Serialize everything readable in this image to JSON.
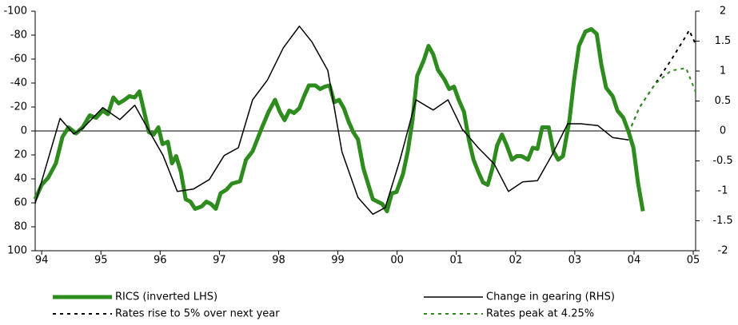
{
  "chart_data": {
    "type": "line",
    "xlim": [
      1993.89,
      2005.04
    ],
    "xticks": [
      {
        "value": 1994,
        "label": "94"
      },
      {
        "value": 1995,
        "label": "95"
      },
      {
        "value": 1996,
        "label": "96"
      },
      {
        "value": 1997,
        "label": "97"
      },
      {
        "value": 1998,
        "label": "98"
      },
      {
        "value": 1999,
        "label": "99"
      },
      {
        "value": 2000,
        "label": "00"
      },
      {
        "value": 2001,
        "label": "01"
      },
      {
        "value": 2002,
        "label": "02"
      },
      {
        "value": 2003,
        "label": "03"
      },
      {
        "value": 2004,
        "label": "04"
      },
      {
        "value": 2005,
        "label": "05"
      }
    ],
    "ylim": [
      -100,
      100
    ],
    "y_inverted": true,
    "yticks": [
      -100,
      -80,
      -60,
      -40,
      -20,
      0,
      20,
      40,
      60,
      80,
      100
    ],
    "y2lim": [
      -2,
      2
    ],
    "y2ticks": [
      2,
      1.5,
      1,
      0.5,
      0,
      -0.5,
      -1,
      -1.5,
      -2
    ],
    "series": [
      {
        "name": "RICS (inverted LHS)",
        "color": "#2e8b1e",
        "axis": "y",
        "style": "thick",
        "x": [
          1993.89,
          1994.0,
          1994.11,
          1994.24,
          1994.35,
          1994.45,
          1994.58,
          1994.69,
          1994.81,
          1994.92,
          1995.03,
          1995.12,
          1995.21,
          1995.3,
          1995.4,
          1995.48,
          1995.57,
          1995.65,
          1995.73,
          1995.81,
          1995.89,
          1995.97,
          1996.04,
          1996.13,
          1996.2,
          1996.27,
          1996.35,
          1996.43,
          1996.51,
          1996.59,
          1996.7,
          1996.78,
          1996.86,
          1996.94,
          1997.02,
          1997.12,
          1997.21,
          1997.35,
          1997.45,
          1997.56,
          1997.64,
          1997.72,
          1997.83,
          1997.94,
          1998.02,
          1998.1,
          1998.18,
          1998.26,
          1998.35,
          1998.43,
          1998.51,
          1998.62,
          1998.7,
          1998.78,
          1998.86,
          1998.94,
          1999.02,
          1999.1,
          1999.18,
          1999.26,
          1999.34,
          1999.43,
          1999.51,
          1999.59,
          1999.67,
          1999.75,
          1999.83,
          1999.91,
          1999.99,
          2000.1,
          2000.18,
          2000.26,
          2000.34,
          2000.45,
          2000.53,
          2000.61,
          2000.69,
          2000.8,
          2000.88,
          2000.96,
          2001.04,
          2001.13,
          2001.21,
          2001.29,
          2001.37,
          2001.45,
          2001.53,
          2001.61,
          2001.69,
          2001.77,
          2001.85,
          2001.94,
          2002.02,
          2002.1,
          2002.21,
          2002.29,
          2002.37,
          2002.45,
          2002.56,
          2002.64,
          2002.72,
          2002.8,
          2002.91,
          2002.99,
          2003.07,
          2003.18,
          2003.28,
          2003.37,
          2003.45,
          2003.53,
          2003.64,
          2003.72,
          2003.82,
          2003.91,
          2003.99,
          2004.07,
          2004.15
        ],
        "values": [
          57,
          45,
          39,
          27,
          5,
          -3,
          2,
          -3,
          -13,
          -11,
          -17,
          -14,
          -28,
          -23,
          -26,
          -29,
          -28,
          -33,
          -16,
          1,
          3,
          -3,
          11,
          9,
          27,
          21,
          34,
          57,
          59,
          65,
          63,
          59,
          61,
          65,
          52,
          49,
          44,
          42,
          24,
          17,
          7,
          -3,
          -16,
          -26,
          -16,
          -9,
          -17,
          -15,
          -19,
          -29,
          -38,
          -38,
          -35,
          -37,
          -38,
          -24,
          -26,
          -19,
          -8,
          1,
          7,
          31,
          44,
          57,
          59,
          61,
          67,
          52,
          51,
          36,
          17,
          -9,
          -46,
          -59,
          -71,
          -64,
          -51,
          -43,
          -35,
          -37,
          -26,
          -16,
          7,
          24,
          34,
          43,
          45,
          31,
          12,
          3,
          12,
          24,
          21,
          21,
          24,
          14,
          15,
          -3,
          -3,
          17,
          24,
          21,
          -9,
          -43,
          -71,
          -83,
          -85,
          -81,
          -55,
          -36,
          -29,
          -17,
          -11,
          1,
          14,
          44,
          67
        ]
      },
      {
        "name": "Change in gearing (RHS)",
        "color": "#000000",
        "axis": "y2",
        "style": "solid",
        "x": [
          1993.89,
          1994.31,
          1994.54,
          1994.7,
          1995.03,
          1995.32,
          1995.57,
          1995.86,
          1996.05,
          1996.29,
          1996.56,
          1996.83,
          1997.08,
          1997.32,
          1997.56,
          1997.81,
          1998.08,
          1998.35,
          1998.56,
          1998.83,
          1999.07,
          1999.34,
          1999.59,
          1999.8,
          2000.05,
          2000.32,
          2000.61,
          2000.86,
          2001.1,
          2001.37,
          2001.64,
          2001.88,
          2002.12,
          2002.37,
          2002.61,
          2002.88,
          2003.1,
          2003.39,
          2003.64,
          2003.91
        ],
        "values": [
          -1.21,
          0.21,
          -0.05,
          0.05,
          0.39,
          0.19,
          0.43,
          -0.08,
          -0.41,
          -1.01,
          -0.97,
          -0.81,
          -0.41,
          -0.28,
          0.52,
          0.85,
          1.39,
          1.75,
          1.49,
          1.01,
          -0.35,
          -1.11,
          -1.39,
          -1.28,
          -0.48,
          0.52,
          0.35,
          0.52,
          0.03,
          -0.28,
          -0.55,
          -1.01,
          -0.85,
          -0.83,
          -0.41,
          0.12,
          0.12,
          0.09,
          -0.11,
          -0.15
        ]
      },
      {
        "name": "Rates rise to 5% over next year",
        "color": "#000000",
        "axis": "y2",
        "style": "dotted",
        "x": [
          2003.91,
          2004.09,
          2004.36,
          2004.63,
          2004.88,
          2004.93,
          2005.04
        ],
        "values": [
          -0.03,
          0.39,
          0.79,
          1.19,
          1.59,
          1.68,
          1.45
        ]
      },
      {
        "name": "Rates peak at 4.25%",
        "color": "#2e8b1e",
        "axis": "y2",
        "style": "dotted",
        "x": [
          2003.91,
          2004.09,
          2004.36,
          2004.63,
          2004.88,
          2005.04
        ],
        "values": [
          -0.03,
          0.39,
          0.79,
          1.01,
          1.05,
          0.65
        ]
      }
    ]
  }
}
